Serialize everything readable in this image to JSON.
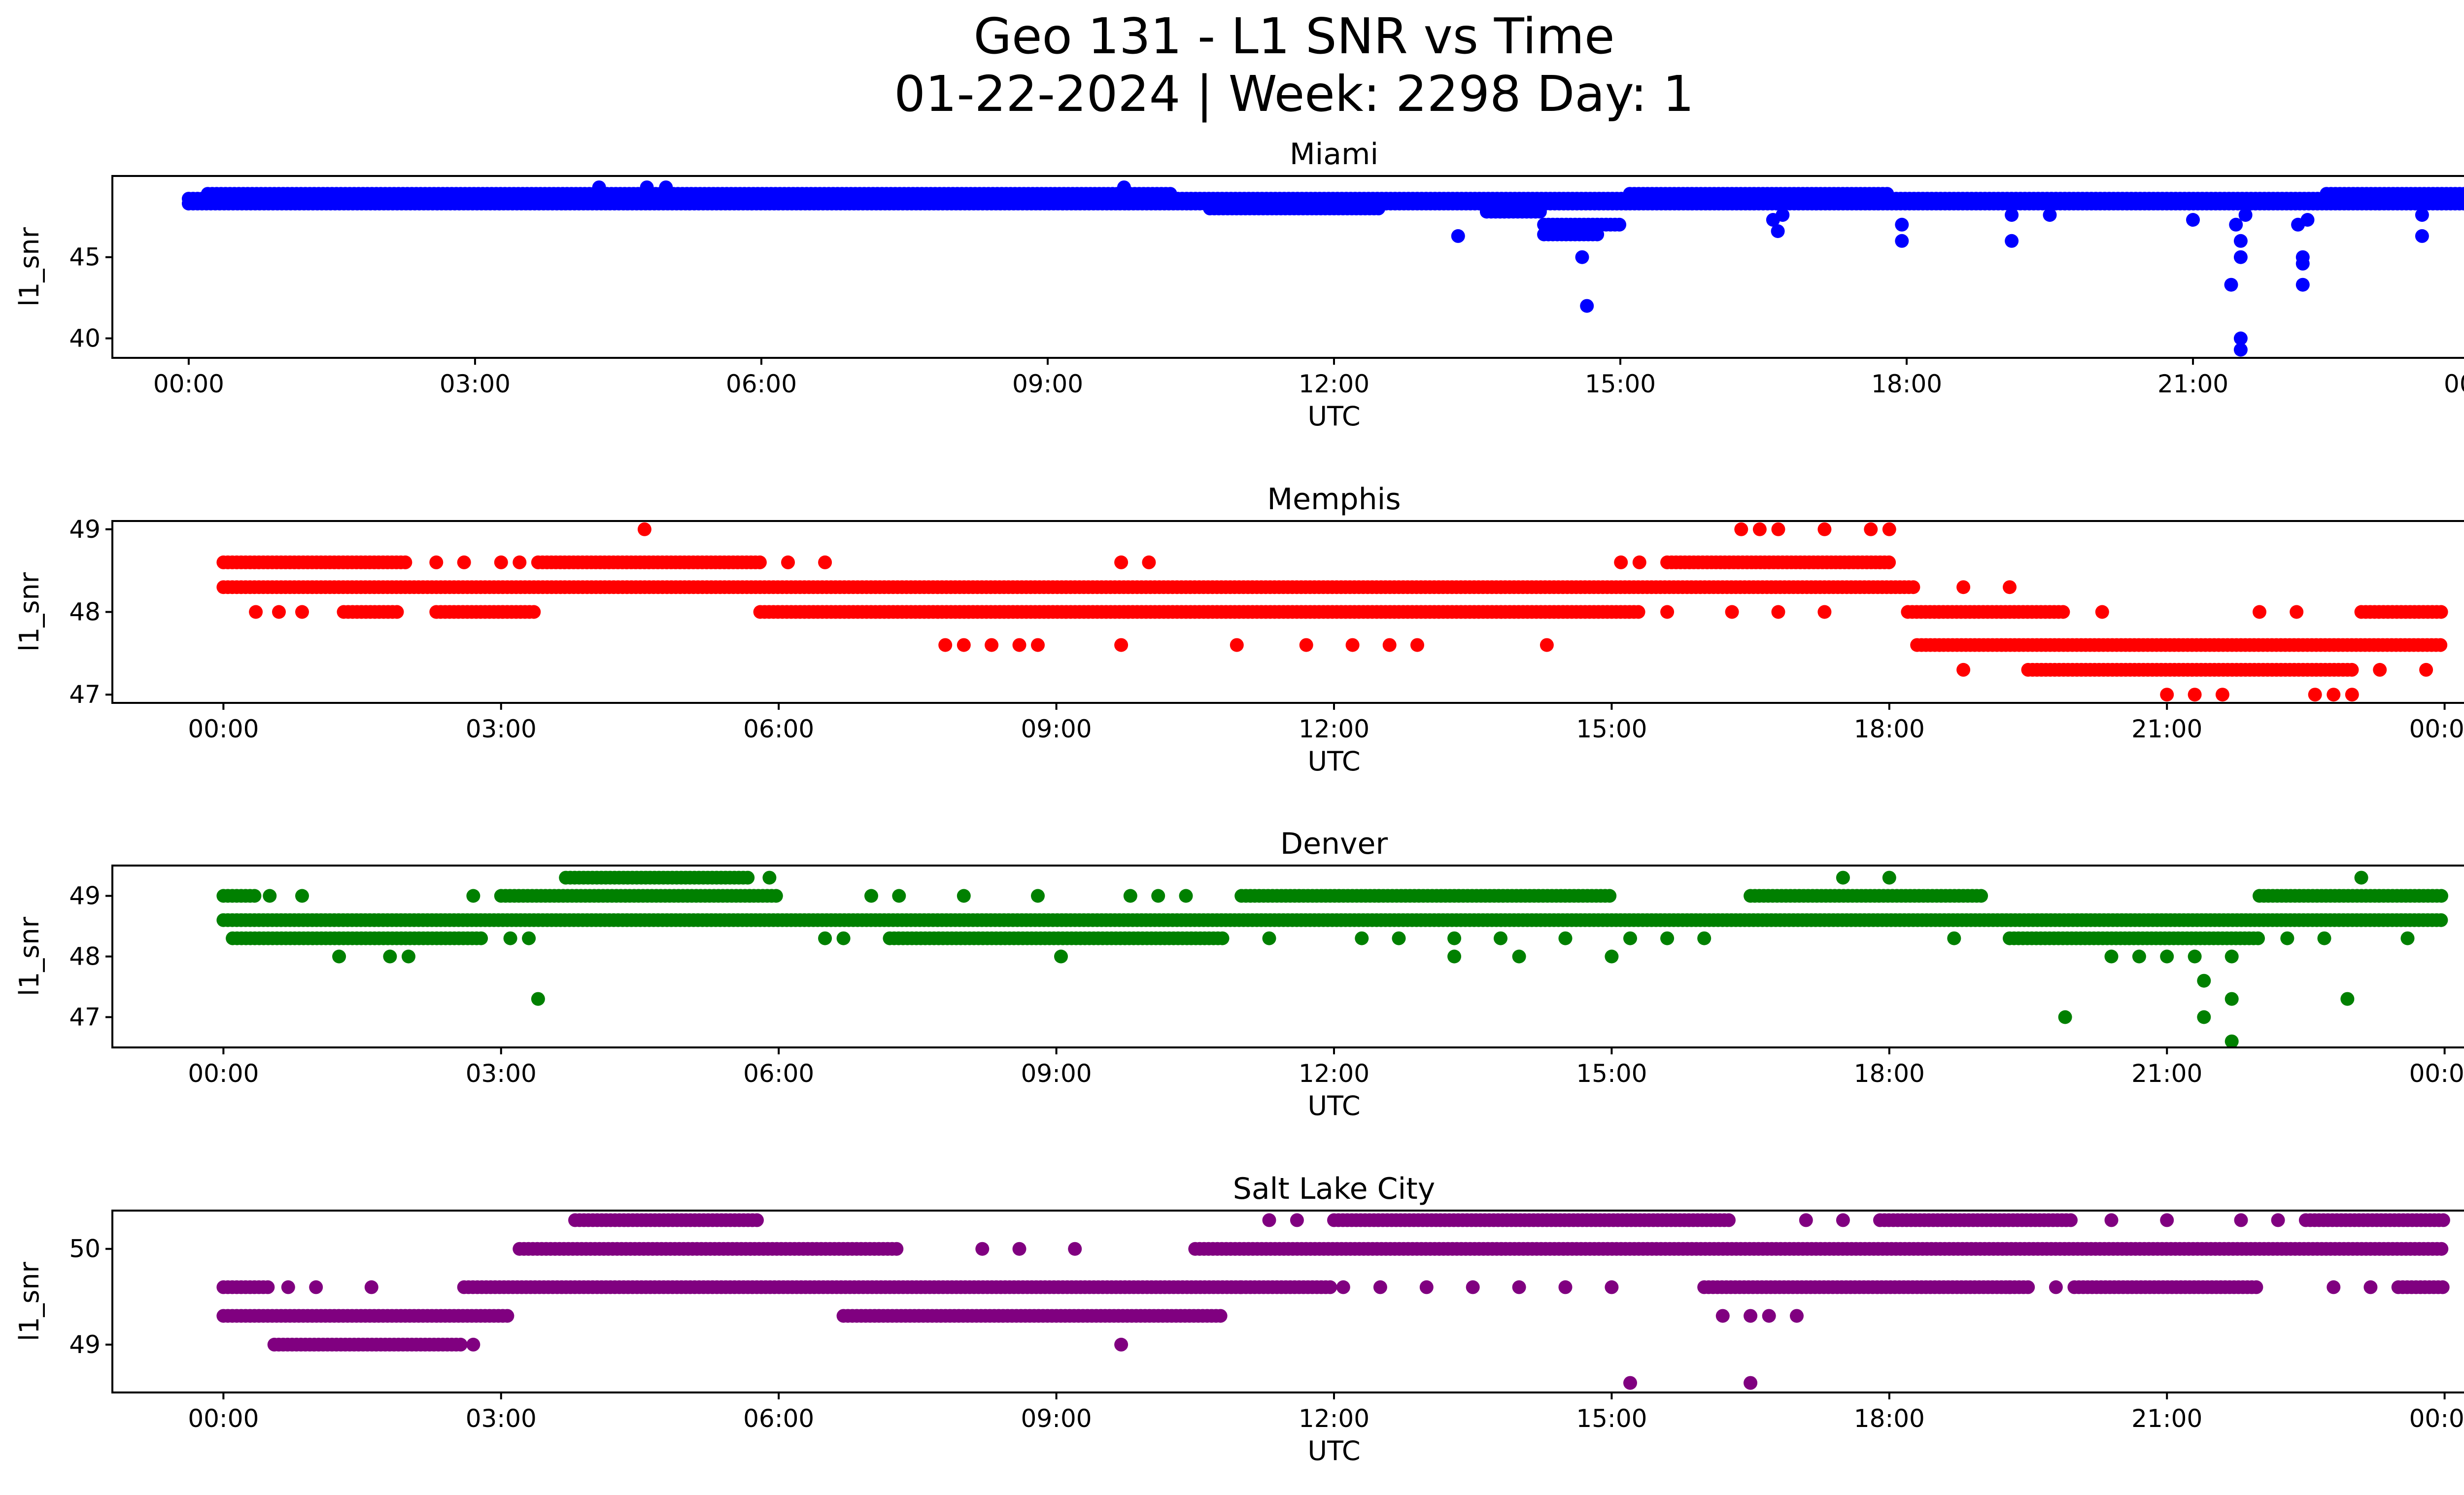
{
  "figure": {
    "title_line1": "Geo 131 - L1 SNR vs Time",
    "title_line2": "01-22-2024 | Week: 2298 Day: 1"
  },
  "chart_data": [
    {
      "type": "scatter",
      "title": "Miami",
      "xlabel": "UTC",
      "ylabel": "l1_snr",
      "color": "#0000ff",
      "xlim": [
        -0.8,
        24.8
      ],
      "ylim": [
        38.8,
        50.0
      ],
      "yticks": [
        40,
        45
      ],
      "xticks": [
        "00:00",
        "03:00",
        "06:00",
        "09:00",
        "12:00",
        "15:00",
        "18:00",
        "21:00",
        "00:00"
      ],
      "bands": [
        {
          "level": 48.3,
          "start": 0.0,
          "end": 24.0
        },
        {
          "level": 48.6,
          "start": 0.0,
          "end": 24.0
        },
        {
          "level": 48.9,
          "start": 0.2,
          "end": 10.3
        },
        {
          "level": 48.9,
          "start": 15.1,
          "end": 17.8
        },
        {
          "level": 48.0,
          "start": 10.7,
          "end": 12.5
        },
        {
          "level": 47.8,
          "start": 13.6,
          "end": 14.2
        },
        {
          "level": 47.0,
          "start": 14.2,
          "end": 15.0
        },
        {
          "level": 46.4,
          "start": 14.2,
          "end": 14.8
        },
        {
          "level": 48.9,
          "start": 22.4,
          "end": 24.0
        }
      ],
      "points": [
        {
          "t": 4.3,
          "v": 49.3
        },
        {
          "t": 4.8,
          "v": 49.3
        },
        {
          "t": 5.0,
          "v": 49.3
        },
        {
          "t": 9.8,
          "v": 49.3
        },
        {
          "t": 13.3,
          "v": 46.3
        },
        {
          "t": 14.6,
          "v": 45.0
        },
        {
          "t": 14.65,
          "v": 42.0
        },
        {
          "t": 16.6,
          "v": 47.3
        },
        {
          "t": 16.65,
          "v": 46.6
        },
        {
          "t": 16.7,
          "v": 47.6
        },
        {
          "t": 17.95,
          "v": 47.0
        },
        {
          "t": 17.95,
          "v": 46.0
        },
        {
          "t": 19.1,
          "v": 46.0
        },
        {
          "t": 19.1,
          "v": 47.6
        },
        {
          "t": 19.5,
          "v": 47.6
        },
        {
          "t": 21.0,
          "v": 47.3
        },
        {
          "t": 21.4,
          "v": 43.3
        },
        {
          "t": 21.5,
          "v": 40.0
        },
        {
          "t": 21.5,
          "v": 39.3
        },
        {
          "t": 21.5,
          "v": 45.0
        },
        {
          "t": 21.5,
          "v": 46.0
        },
        {
          "t": 21.45,
          "v": 47.0
        },
        {
          "t": 21.55,
          "v": 47.6
        },
        {
          "t": 22.15,
          "v": 44.6
        },
        {
          "t": 22.15,
          "v": 45.0
        },
        {
          "t": 22.15,
          "v": 43.3
        },
        {
          "t": 22.1,
          "v": 47.0
        },
        {
          "t": 22.2,
          "v": 47.3
        },
        {
          "t": 23.4,
          "v": 46.3
        },
        {
          "t": 23.4,
          "v": 47.6
        }
      ]
    },
    {
      "type": "scatter",
      "title": "Memphis",
      "xlabel": "UTC",
      "ylabel": "l1_snr",
      "color": "#ff0000",
      "xlim": [
        -1.2,
        25.2
      ],
      "ylim": [
        46.9,
        49.1
      ],
      "yticks": [
        47,
        48,
        49
      ],
      "xticks": [
        "00:00",
        "03:00",
        "06:00",
        "09:00",
        "12:00",
        "15:00",
        "18:00",
        "21:00",
        "00:00"
      ],
      "bands": [
        {
          "level": 48.3,
          "start": 0.0,
          "end": 18.3
        },
        {
          "level": 48.6,
          "start": 0.0,
          "end": 2.0
        },
        {
          "level": 48.6,
          "start": 3.4,
          "end": 5.8
        },
        {
          "level": 48.6,
          "start": 15.6,
          "end": 18.0
        },
        {
          "level": 48.0,
          "start": 5.8,
          "end": 15.3
        },
        {
          "level": 48.0,
          "start": 1.3,
          "end": 1.9
        },
        {
          "level": 48.0,
          "start": 2.3,
          "end": 3.4
        },
        {
          "level": 48.0,
          "start": 18.2,
          "end": 19.9
        },
        {
          "level": 47.6,
          "start": 18.3,
          "end": 24.0
        },
        {
          "level": 47.3,
          "start": 19.5,
          "end": 23.0
        },
        {
          "level": 48.0,
          "start": 23.1,
          "end": 24.0
        }
      ],
      "points": [
        {
          "t": 4.55,
          "v": 49.0
        },
        {
          "t": 16.4,
          "v": 49.0
        },
        {
          "t": 16.6,
          "v": 49.0
        },
        {
          "t": 16.8,
          "v": 49.0
        },
        {
          "t": 17.3,
          "v": 49.0
        },
        {
          "t": 17.8,
          "v": 49.0
        },
        {
          "t": 18.0,
          "v": 49.0
        },
        {
          "t": 0.35,
          "v": 48.0
        },
        {
          "t": 0.6,
          "v": 48.0
        },
        {
          "t": 0.85,
          "v": 48.0
        },
        {
          "t": 2.3,
          "v": 48.6
        },
        {
          "t": 2.6,
          "v": 48.6
        },
        {
          "t": 3.0,
          "v": 48.6
        },
        {
          "t": 3.2,
          "v": 48.6
        },
        {
          "t": 6.1,
          "v": 48.6
        },
        {
          "t": 6.5,
          "v": 48.6
        },
        {
          "t": 9.7,
          "v": 48.6
        },
        {
          "t": 10.0,
          "v": 48.6
        },
        {
          "t": 7.8,
          "v": 47.6
        },
        {
          "t": 8.0,
          "v": 47.6
        },
        {
          "t": 8.3,
          "v": 47.6
        },
        {
          "t": 8.6,
          "v": 47.6
        },
        {
          "t": 8.8,
          "v": 47.6
        },
        {
          "t": 9.7,
          "v": 47.6
        },
        {
          "t": 10.95,
          "v": 47.6
        },
        {
          "t": 11.7,
          "v": 47.6
        },
        {
          "t": 12.2,
          "v": 47.6
        },
        {
          "t": 12.6,
          "v": 47.6
        },
        {
          "t": 12.9,
          "v": 47.6
        },
        {
          "t": 14.3,
          "v": 47.6
        },
        {
          "t": 15.1,
          "v": 48.6
        },
        {
          "t": 15.3,
          "v": 48.6
        },
        {
          "t": 15.6,
          "v": 48.0
        },
        {
          "t": 16.3,
          "v": 48.0
        },
        {
          "t": 16.8,
          "v": 48.0
        },
        {
          "t": 17.3,
          "v": 48.0
        },
        {
          "t": 18.8,
          "v": 48.3
        },
        {
          "t": 19.3,
          "v": 48.3
        },
        {
          "t": 18.8,
          "v": 47.3
        },
        {
          "t": 20.3,
          "v": 48.0
        },
        {
          "t": 22.0,
          "v": 48.0
        },
        {
          "t": 22.4,
          "v": 48.0
        },
        {
          "t": 21.0,
          "v": 47.0
        },
        {
          "t": 21.3,
          "v": 47.0
        },
        {
          "t": 21.6,
          "v": 47.0
        },
        {
          "t": 22.6,
          "v": 47.0
        },
        {
          "t": 22.8,
          "v": 47.0
        },
        {
          "t": 23.0,
          "v": 47.0
        },
        {
          "t": 23.3,
          "v": 47.3
        },
        {
          "t": 23.8,
          "v": 47.3
        }
      ]
    },
    {
      "type": "scatter",
      "title": "Denver",
      "xlabel": "UTC",
      "ylabel": "l1_snr",
      "color": "#008000",
      "xlim": [
        -1.2,
        25.2
      ],
      "ylim": [
        46.5,
        49.5
      ],
      "yticks": [
        47,
        48,
        49
      ],
      "xticks": [
        "00:00",
        "03:00",
        "06:00",
        "09:00",
        "12:00",
        "15:00",
        "18:00",
        "21:00",
        "00:00"
      ],
      "bands": [
        {
          "level": 48.6,
          "start": 0.0,
          "end": 24.0
        },
        {
          "level": 48.3,
          "start": 0.1,
          "end": 2.8
        },
        {
          "level": 48.3,
          "start": 7.2,
          "end": 10.8
        },
        {
          "level": 48.3,
          "start": 19.3,
          "end": 22.0
        },
        {
          "level": 49.0,
          "start": 3.0,
          "end": 6.0
        },
        {
          "level": 49.0,
          "start": 11.0,
          "end": 15.0
        },
        {
          "level": 49.0,
          "start": 16.5,
          "end": 19.0
        },
        {
          "level": 49.0,
          "start": 22.0,
          "end": 24.0
        },
        {
          "level": 49.3,
          "start": 3.7,
          "end": 5.7
        },
        {
          "level": 49.0,
          "start": 0.0,
          "end": 0.35
        }
      ],
      "points": [
        {
          "t": 0.5,
          "v": 49.0
        },
        {
          "t": 0.85,
          "v": 49.0
        },
        {
          "t": 1.25,
          "v": 48.0
        },
        {
          "t": 1.8,
          "v": 48.0
        },
        {
          "t": 2.0,
          "v": 48.0
        },
        {
          "t": 2.7,
          "v": 49.0
        },
        {
          "t": 3.1,
          "v": 48.3
        },
        {
          "t": 3.3,
          "v": 48.3
        },
        {
          "t": 3.4,
          "v": 47.3
        },
        {
          "t": 5.9,
          "v": 49.3
        },
        {
          "t": 6.5,
          "v": 48.3
        },
        {
          "t": 6.7,
          "v": 48.3
        },
        {
          "t": 7.0,
          "v": 49.0
        },
        {
          "t": 7.3,
          "v": 49.0
        },
        {
          "t": 8.0,
          "v": 49.0
        },
        {
          "t": 8.8,
          "v": 49.0
        },
        {
          "t": 9.05,
          "v": 48.0
        },
        {
          "t": 9.8,
          "v": 49.0
        },
        {
          "t": 10.1,
          "v": 49.0
        },
        {
          "t": 10.4,
          "v": 49.0
        },
        {
          "t": 11.3,
          "v": 48.3
        },
        {
          "t": 12.3,
          "v": 48.3
        },
        {
          "t": 12.7,
          "v": 48.3
        },
        {
          "t": 13.3,
          "v": 48.3
        },
        {
          "t": 13.3,
          "v": 48.0
        },
        {
          "t": 13.8,
          "v": 48.3
        },
        {
          "t": 14.0,
          "v": 48.0
        },
        {
          "t": 14.5,
          "v": 48.3
        },
        {
          "t": 15.0,
          "v": 48.0
        },
        {
          "t": 15.2,
          "v": 48.3
        },
        {
          "t": 15.6,
          "v": 48.3
        },
        {
          "t": 16.0,
          "v": 48.3
        },
        {
          "t": 17.5,
          "v": 49.3
        },
        {
          "t": 18.0,
          "v": 49.3
        },
        {
          "t": 18.7,
          "v": 48.3
        },
        {
          "t": 19.9,
          "v": 47.0
        },
        {
          "t": 20.4,
          "v": 48.0
        },
        {
          "t": 20.7,
          "v": 48.0
        },
        {
          "t": 21.0,
          "v": 48.0
        },
        {
          "t": 21.3,
          "v": 48.0
        },
        {
          "t": 21.4,
          "v": 47.6
        },
        {
          "t": 21.4,
          "v": 47.0
        },
        {
          "t": 21.7,
          "v": 47.3
        },
        {
          "t": 21.7,
          "v": 46.6
        },
        {
          "t": 21.7,
          "v": 48.0
        },
        {
          "t": 22.3,
          "v": 48.3
        },
        {
          "t": 22.7,
          "v": 48.3
        },
        {
          "t": 22.95,
          "v": 47.3
        },
        {
          "t": 23.1,
          "v": 49.3
        },
        {
          "t": 23.6,
          "v": 48.3
        }
      ]
    },
    {
      "type": "scatter",
      "title": "Salt Lake City",
      "xlabel": "UTC",
      "ylabel": "l1_snr",
      "color": "#800080",
      "xlim": [
        -1.2,
        25.2
      ],
      "ylim": [
        48.5,
        50.4
      ],
      "yticks": [
        49,
        50
      ],
      "xticks": [
        "00:00",
        "03:00",
        "06:00",
        "09:00",
        "12:00",
        "15:00",
        "18:00",
        "21:00",
        "00:00"
      ],
      "bands": [
        {
          "level": 49.6,
          "start": 0.0,
          "end": 0.5
        },
        {
          "level": 49.3,
          "start": 0.0,
          "end": 3.1
        },
        {
          "level": 49.0,
          "start": 0.55,
          "end": 2.6
        },
        {
          "level": 49.6,
          "start": 2.6,
          "end": 11.0
        },
        {
          "level": 50.0,
          "start": 3.2,
          "end": 7.3
        },
        {
          "level": 50.3,
          "start": 3.8,
          "end": 5.8
        },
        {
          "level": 49.3,
          "start": 6.7,
          "end": 10.8
        },
        {
          "level": 50.0,
          "start": 10.5,
          "end": 24.0
        },
        {
          "level": 49.6,
          "start": 11.0,
          "end": 12.0
        },
        {
          "level": 50.3,
          "start": 12.0,
          "end": 16.3
        },
        {
          "level": 49.6,
          "start": 16.0,
          "end": 19.5
        },
        {
          "level": 50.3,
          "start": 17.9,
          "end": 20.0
        },
        {
          "level": 49.6,
          "start": 20.0,
          "end": 22.0
        },
        {
          "level": 50.3,
          "start": 22.5,
          "end": 24.0
        },
        {
          "level": 49.6,
          "start": 23.5,
          "end": 24.0
        }
      ],
      "points": [
        {
          "t": 0.7,
          "v": 49.6
        },
        {
          "t": 1.0,
          "v": 49.6
        },
        {
          "t": 1.6,
          "v": 49.6
        },
        {
          "t": 2.7,
          "v": 49.0
        },
        {
          "t": 8.2,
          "v": 50.0
        },
        {
          "t": 8.6,
          "v": 50.0
        },
        {
          "t": 9.2,
          "v": 50.0
        },
        {
          "t": 9.7,
          "v": 49.0
        },
        {
          "t": 11.3,
          "v": 50.3
        },
        {
          "t": 11.6,
          "v": 50.3
        },
        {
          "t": 12.1,
          "v": 49.6
        },
        {
          "t": 12.5,
          "v": 49.6
        },
        {
          "t": 13.0,
          "v": 49.6
        },
        {
          "t": 13.5,
          "v": 49.6
        },
        {
          "t": 14.0,
          "v": 49.6
        },
        {
          "t": 14.5,
          "v": 49.6
        },
        {
          "t": 15.0,
          "v": 49.6
        },
        {
          "t": 15.2,
          "v": 48.6
        },
        {
          "t": 16.5,
          "v": 48.6
        },
        {
          "t": 16.2,
          "v": 49.3
        },
        {
          "t": 16.5,
          "v": 49.3
        },
        {
          "t": 16.7,
          "v": 49.3
        },
        {
          "t": 17.0,
          "v": 49.3
        },
        {
          "t": 17.1,
          "v": 50.3
        },
        {
          "t": 17.5,
          "v": 50.3
        },
        {
          "t": 19.3,
          "v": 49.6
        },
        {
          "t": 19.8,
          "v": 49.6
        },
        {
          "t": 20.4,
          "v": 50.3
        },
        {
          "t": 21.0,
          "v": 50.3
        },
        {
          "t": 21.8,
          "v": 50.3
        },
        {
          "t": 22.2,
          "v": 50.3
        },
        {
          "t": 22.8,
          "v": 49.6
        },
        {
          "t": 23.2,
          "v": 49.6
        }
      ]
    }
  ]
}
